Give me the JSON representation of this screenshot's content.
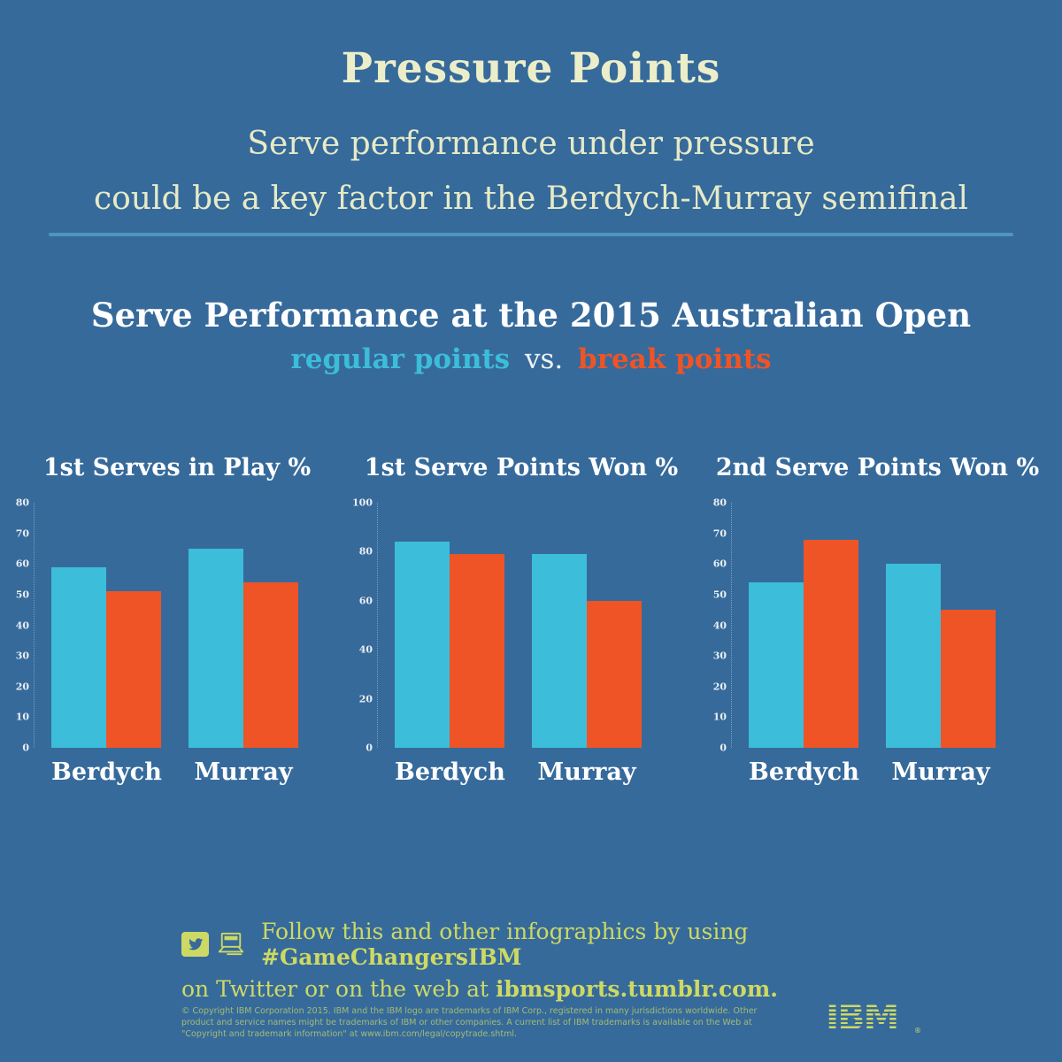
{
  "header": {
    "title": "Pressure Points",
    "subtitle_line1": "Serve performance under pressure",
    "subtitle_line2": "could be a key factor in the Berdych-Murray semifinal"
  },
  "section": {
    "heading": "Serve Performance at the 2015 Australian Open",
    "legend": {
      "regular": "regular points",
      "vs": "vs.",
      "break": "break points"
    }
  },
  "colors": {
    "background": "#366a9b",
    "regular_points": "#3cbdda",
    "break_points": "#ee5426",
    "cream_text": "#eceec9",
    "footer_green": "#cdd964",
    "divider_blue": "#4d96c3"
  },
  "chart_data": [
    {
      "type": "bar",
      "title": "1st Serves in Play %",
      "categories": [
        "Berdych",
        "Murray"
      ],
      "series": [
        {
          "name": "regular points",
          "values": [
            59,
            65
          ]
        },
        {
          "name": "break points",
          "values": [
            51,
            54
          ]
        }
      ],
      "ylim": [
        0,
        80
      ],
      "ytick_step": 10,
      "legend_position": "none",
      "grid": false
    },
    {
      "type": "bar",
      "title": "1st Serve Points Won %",
      "categories": [
        "Berdych",
        "Murray"
      ],
      "series": [
        {
          "name": "regular points",
          "values": [
            84,
            79
          ]
        },
        {
          "name": "break points",
          "values": [
            79,
            60
          ]
        }
      ],
      "ylim": [
        0,
        100
      ],
      "ytick_step": 20,
      "legend_position": "none",
      "grid": false
    },
    {
      "type": "bar",
      "title": "2nd Serve Points Won %",
      "categories": [
        "Berdych",
        "Murray"
      ],
      "series": [
        {
          "name": "regular points",
          "values": [
            54,
            60
          ]
        },
        {
          "name": "break points",
          "values": [
            68,
            45
          ]
        }
      ],
      "ylim": [
        0,
        80
      ],
      "ytick_step": 10,
      "legend_position": "none",
      "grid": false
    }
  ],
  "footer": {
    "line1_normal": "Follow this and other infographics by using ",
    "line1_bold": "#GameChangersIBM",
    "line2_normal": "on Twitter or on the web at ",
    "line2_bold": "ibmsports.tumblr.com.",
    "icons": [
      "twitter-icon",
      "computer-icon"
    ]
  },
  "legal": {
    "text": "© Copyright IBM Corporation 2015. IBM and the IBM logo are trademarks of IBM Corp., registered in many jurisdictions worldwide. Other product and service names might be trademarks of IBM or other companies. A current list of IBM trademarks is available on the Web at \"Copyright and trademark information\" at www.ibm.com/legal/copytrade.shtml.",
    "ibm_logo": "IBM",
    "registered_mark": "®"
  }
}
